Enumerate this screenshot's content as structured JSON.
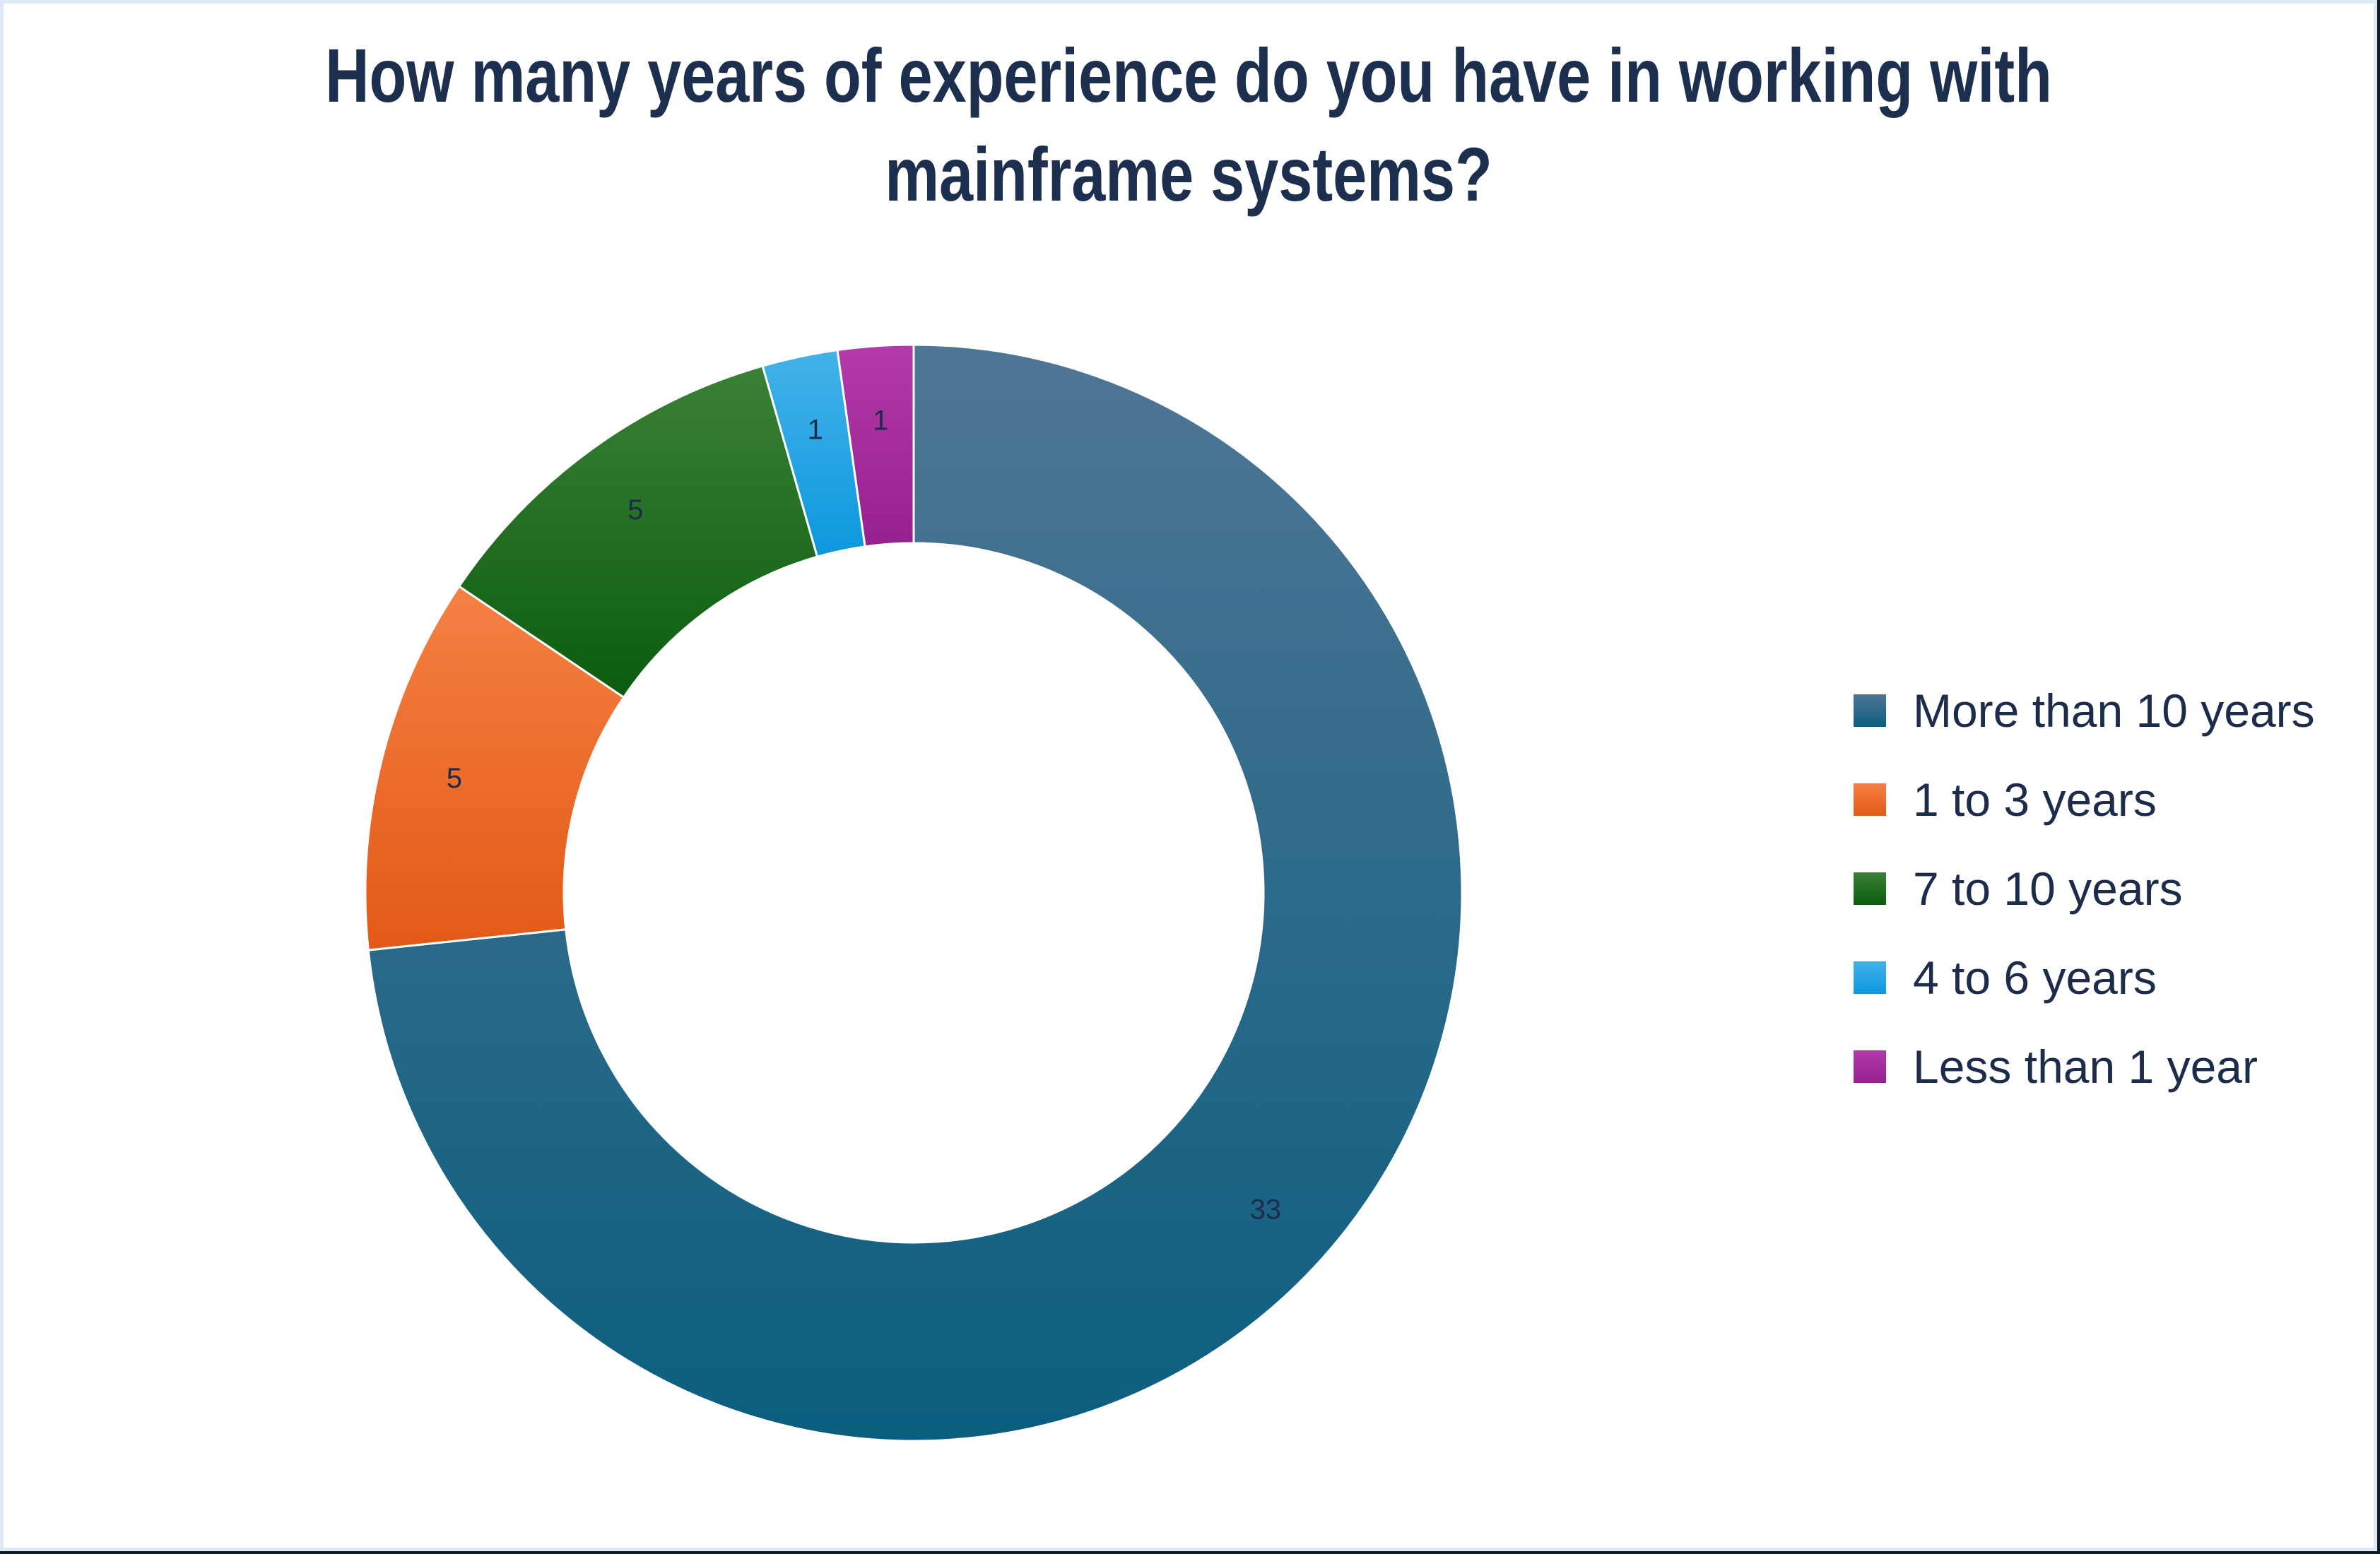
{
  "frame": {
    "background": "#ffffff",
    "inner_border_color": "#dfeaf7",
    "edge_color": "#0d1b2a"
  },
  "title": {
    "text": "How many years of experience do you have in working with mainframe systems?",
    "lines": [
      "How many years of experience do you have in working with",
      "mainframe systems?"
    ],
    "color": "#1c2f4e"
  },
  "chart_data": {
    "type": "pie",
    "subtype": "donut",
    "title": "How many years of experience do you have in working with mainframe systems?",
    "total": 45,
    "start_angle_deg": 0,
    "direction": "clockwise",
    "legend_position": "right",
    "grid": false,
    "data_label_color": "#1e2b49",
    "slice_separator_color": "#ffffff",
    "slices": [
      {
        "label": "More than 10 years",
        "value": 33,
        "color": "#1f6389",
        "gradient": [
          "#4f7694",
          "#0b5e7f"
        ]
      },
      {
        "label": "1 to 3 years",
        "value": 5,
        "color": "#eb6a2e",
        "gradient": [
          "#f58045",
          "#e25a15"
        ]
      },
      {
        "label": "7 to 10 years",
        "value": 5,
        "color": "#1d731d",
        "gradient": [
          "#3a8138",
          "#0b5c0e"
        ]
      },
      {
        "label": "4 to 6 years",
        "value": 1,
        "color": "#25a4e2",
        "gradient": [
          "#44b2e9",
          "#0c98de"
        ]
      },
      {
        "label": "Less than 1 year",
        "value": 1,
        "color": "#a62b9d",
        "gradient": [
          "#b23aa9",
          "#97208f"
        ]
      }
    ]
  },
  "legend": {
    "text_color": "#1d2c4a"
  }
}
